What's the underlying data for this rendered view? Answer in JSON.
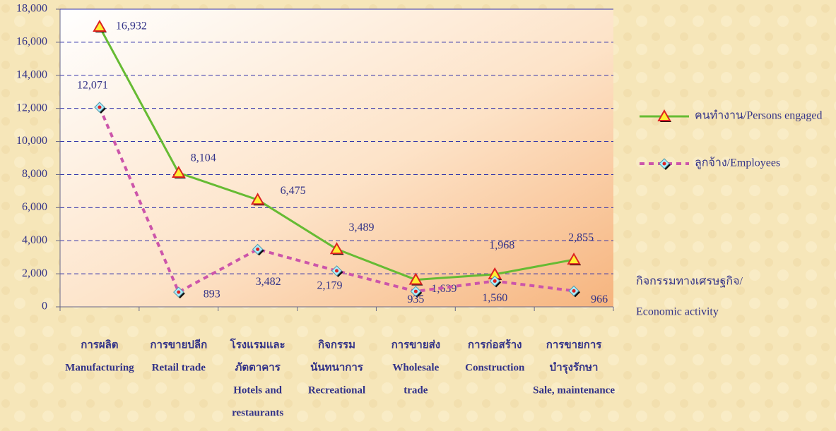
{
  "chart_data": {
    "type": "line",
    "categories": [
      [
        "การผลิต",
        "Manufacturing"
      ],
      [
        "การขายปลีก",
        "Retail trade"
      ],
      [
        "โรงแรมและ",
        "ภัตตาคาร",
        "Hotels and",
        "restaurants"
      ],
      [
        "กิจกรรม",
        "นันทนาการ",
        "Recreational"
      ],
      [
        "การขายส่ง",
        "Wholesale",
        "trade"
      ],
      [
        "การก่อสร้าง",
        "Construction"
      ],
      [
        "การขายการ",
        "บำรุงรักษา",
        "Sale, maintenance"
      ]
    ],
    "series": [
      {
        "name": "คนทำงาน/Persons engaged",
        "color": "#66bb33",
        "values": [
          16932,
          8104,
          6475,
          3489,
          1639,
          1968,
          2855
        ],
        "value_labels": [
          "16,932",
          "8,104",
          "6,475",
          "3,489",
          "1,639",
          "1,968",
          "2,855"
        ]
      },
      {
        "name": "ลูกจ้าง/Employees",
        "color": "#cc55aa",
        "values": [
          12071,
          893,
          3482,
          2179,
          935,
          1560,
          966
        ],
        "value_labels": [
          "12,071",
          "893",
          "3,482",
          "2,179",
          "935",
          "1,560",
          "966"
        ]
      }
    ],
    "xlabel": [
      "กิจกรรมทางเศรษฐกิจ/",
      "Economic activity"
    ],
    "ylim": [
      0,
      18000
    ],
    "yticks": [
      0,
      {
        "value": 2000,
        "label": "2,000"
      },
      {
        "value": 4000,
        "label": "4,000"
      },
      {
        "value": 6000,
        "label": "6,000"
      },
      {
        "value": 8000,
        "label": "8,000"
      },
      {
        "value": 10000,
        "label": "10,000"
      },
      {
        "value": 12000,
        "label": "12,000"
      },
      {
        "value": 14000,
        "label": "14,000"
      },
      {
        "value": 16000,
        "label": "16,000"
      },
      {
        "value": 18000,
        "label": "18,000"
      }
    ],
    "grid": true,
    "legend": "right"
  }
}
